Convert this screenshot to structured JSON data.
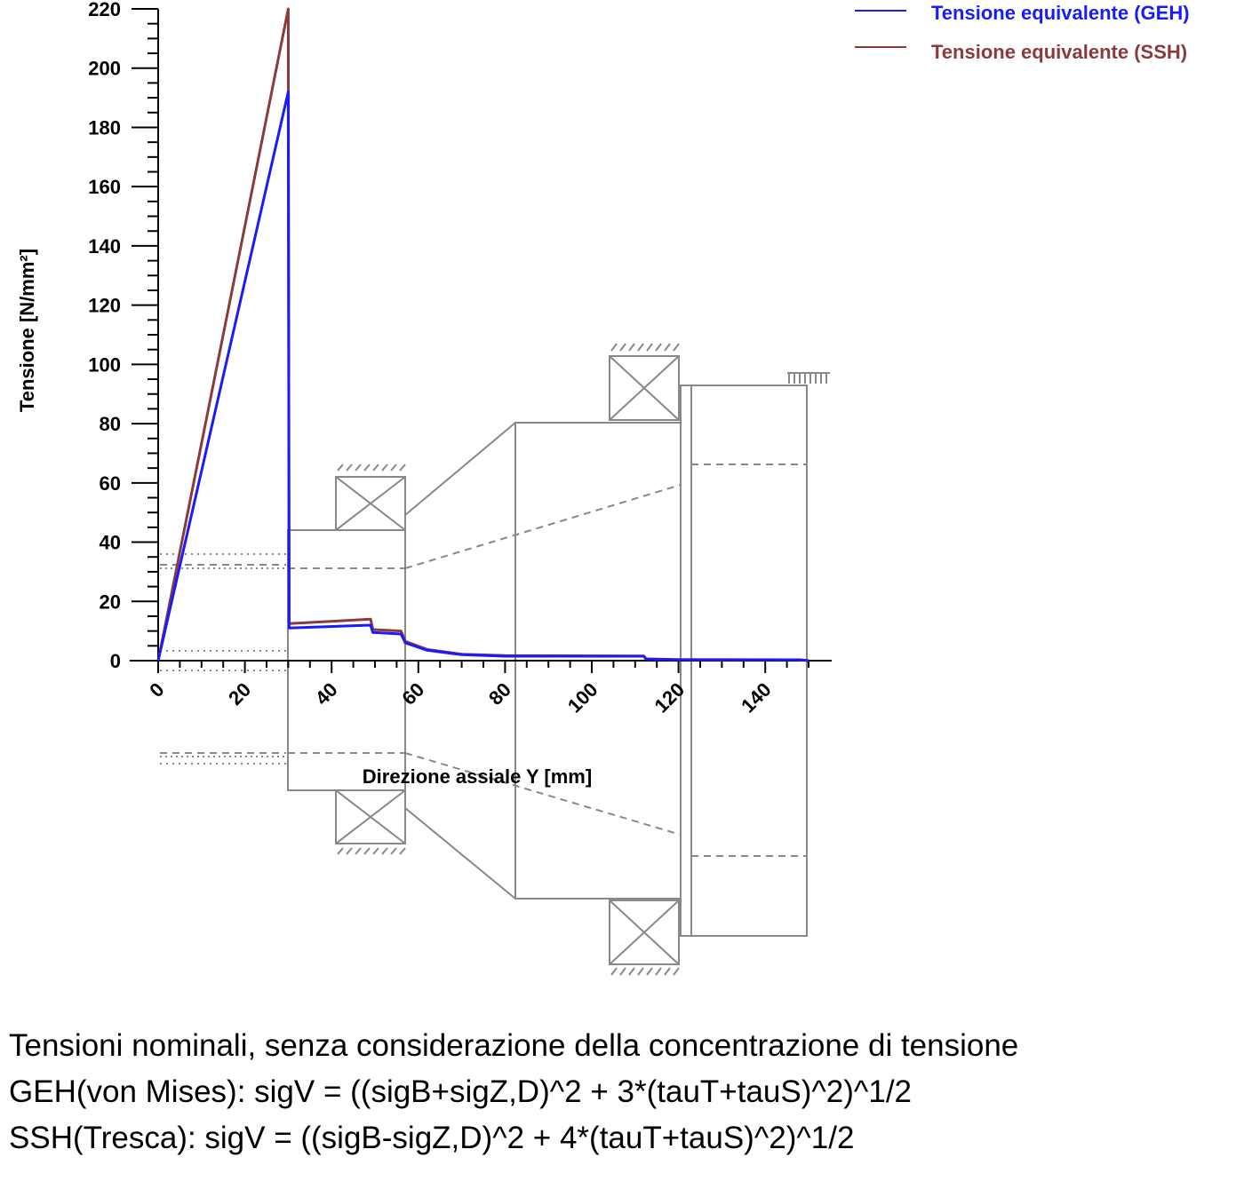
{
  "chart_data": {
    "type": "line",
    "xlabel": "Direzione assiale Y [mm]",
    "ylabel": "Tensione [N/mm²]",
    "xlim": [
      0,
      150
    ],
    "ylim": [
      0,
      220
    ],
    "x_ticks": [
      "0",
      "20",
      "40",
      "60",
      "80",
      "100",
      "120",
      "140"
    ],
    "y_ticks": [
      "0",
      "20",
      "40",
      "60",
      "80",
      "100",
      "120",
      "140",
      "160",
      "180",
      "200",
      "220"
    ],
    "legend_position": "top-right",
    "grid": false,
    "series": [
      {
        "name": "Tensione equivalente (GEH)",
        "color": "#1a1aff",
        "x": [
          0,
          30,
          30,
          30.2,
          49,
          49.5,
          56,
          57,
          62,
          70,
          80,
          112,
          112.5,
          120,
          148,
          150
        ],
        "y": [
          0,
          192,
          192,
          11,
          12,
          9.5,
          9,
          6,
          3.5,
          2,
          1.5,
          1.5,
          0.5,
          0.3,
          0.3,
          0
        ]
      },
      {
        "name": "Tensione equivalente (SSH)",
        "color": "#8b3a3a",
        "x": [
          0,
          30,
          30,
          30.2,
          49,
          49.5,
          56,
          57,
          62,
          70,
          80,
          112,
          112.5,
          120,
          148,
          150
        ],
        "y": [
          0,
          220,
          220,
          12.5,
          14,
          10.5,
          10,
          6.5,
          3.8,
          2.2,
          1.7,
          1.6,
          0.6,
          0.4,
          0.3,
          0
        ]
      }
    ]
  },
  "notes": {
    "line1": "Tensioni nominali, senza considerazione della concentrazione di tensione",
    "line2": "GEH(von Mises): sigV = ((sigB+sigZ,D)^2 + 3*(tauT+tauS)^2)^1/2",
    "line3": "SSH(Tresca): sigV = ((sigB-sigZ,D)^2 + 4*(tauT+tauS)^2)^1/2"
  }
}
